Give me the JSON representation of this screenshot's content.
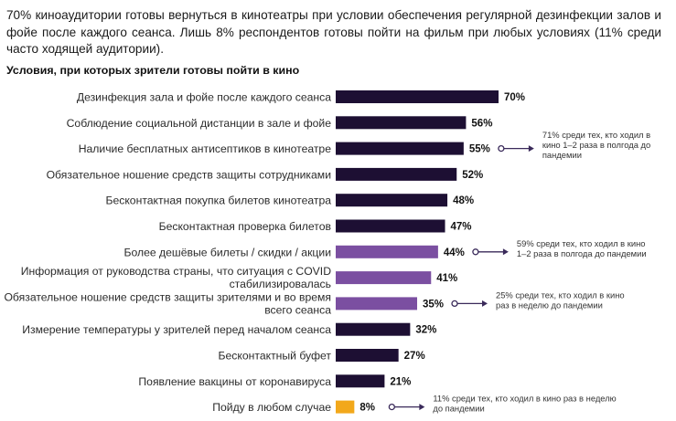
{
  "intro": "70% киноаудитории готовы вернуться в кинотеатры при условии обеспечения регулярной дезинфекции залов и фойе после каждого сеанса. Лишь 8% респондентов готовы пойти на фильм при любых условиях (11% среди часто ходящей аудитории).",
  "colors": {
    "dark": "#1d0f33",
    "purple": "#7b4fa1",
    "orange": "#f2a81b",
    "arrow": "#3a2a5a"
  },
  "chart_data": {
    "type": "bar",
    "orientation": "horizontal",
    "title": "Условия, при которых зрители готовы пойти в кино",
    "xlim": [
      0,
      100
    ],
    "categories": [
      "Дезинфекция зала и фойе после каждого сеанса",
      "Соблюдение социальной дистанции в зале и фойе",
      "Наличие бесплатных антисептиков в кинотеатре",
      "Обязательное ношение средств защиты сотрудниками",
      "Бесконтактная покупка билетов кинотеатра",
      "Бесконтактная проверка билетов",
      "Более дешёвые билеты / скидки / акции",
      "Информация от руководства страны, что ситуация с COVID стабилизировалась",
      "Обязательное ношение средств защиты зрителями и во время всего сеанса",
      "Измерение температуры у зрителей перед началом сеанса",
      "Бесконтактный буфет",
      "Появление вакцины от коронавируса",
      "Пойду в любом случае"
    ],
    "label_lines": [
      [
        "Дезинфекция зала и фойе после каждого сеанса"
      ],
      [
        "Соблюдение социальной дистанции в зале и фойе"
      ],
      [
        "Наличие бесплатных антисептиков в кинотеатре"
      ],
      [
        "Обязательное ношение средств защиты сотрудниками"
      ],
      [
        "Бесконтактная покупка билетов кинотеатра"
      ],
      [
        "Бесконтактная проверка билетов"
      ],
      [
        "Более дешёвые билеты / скидки / акции"
      ],
      [
        "Информация от руководства страны, что ситуация с COVID",
        "стабилизировалась"
      ],
      [
        "Обязательное ношение средств защиты зрителями и во время",
        "всего сеанса"
      ],
      [
        "Измерение температуры у зрителей перед началом сеанса"
      ],
      [
        "Бесконтактный буфет"
      ],
      [
        "Появление вакцины от коронавируса"
      ],
      [
        "Пойду в любом случае"
      ]
    ],
    "values": [
      70,
      56,
      55,
      52,
      48,
      47,
      44,
      41,
      35,
      32,
      27,
      21,
      8
    ],
    "value_labels": [
      "70%",
      "56%",
      "55%",
      "52%",
      "48%",
      "47%",
      "44%",
      "41%",
      "35%",
      "32%",
      "27%",
      "21%",
      "8%"
    ],
    "bar_colors": [
      "dark",
      "dark",
      "dark",
      "dark",
      "dark",
      "dark",
      "purple",
      "purple",
      "purple",
      "dark",
      "dark",
      "dark",
      "orange"
    ],
    "annotations": [
      {
        "bar_index": 2,
        "lines": [
          "71% среди тех, кто ходил в",
          "кино 1–2 раза в полгода до",
          "пандемии"
        ]
      },
      {
        "bar_index": 6,
        "lines": [
          "59% среди тех, кто ходил в кино",
          "1–2 раза в полгода до пандемии"
        ]
      },
      {
        "bar_index": 8,
        "lines": [
          "25% среди тех, кто ходил в кино",
          "раз в неделю до пандемии"
        ]
      },
      {
        "bar_index": 12,
        "lines": [
          "11% среди тех, кто ходил в кино раз в неделю",
          "до пандемии"
        ]
      }
    ]
  }
}
